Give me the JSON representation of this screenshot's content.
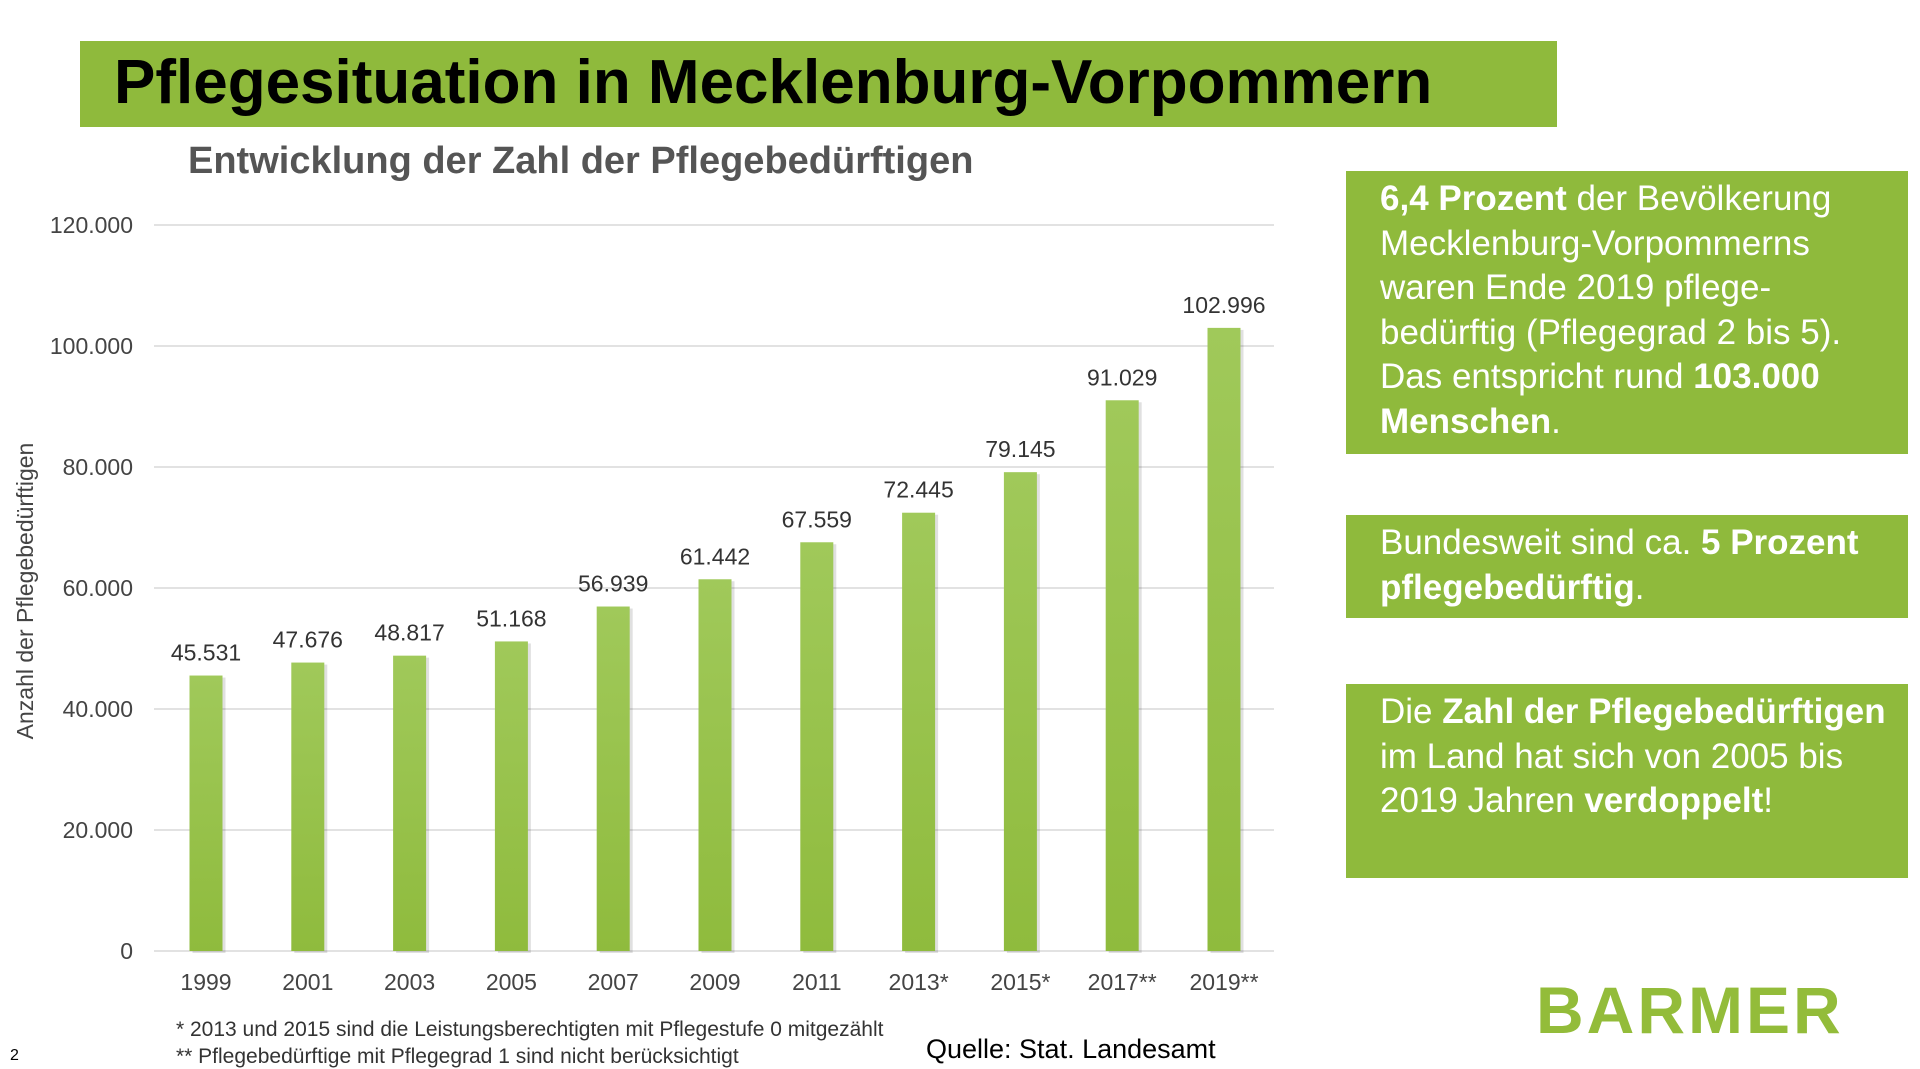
{
  "title": "Pflegesituation in Mecklenburg-Vorpommern",
  "chart_data": {
    "type": "bar",
    "title": "Entwicklung der Zahl der Pflegebedürftigen",
    "xlabel": "",
    "ylabel": "Anzahl der Pflegebedürftigen",
    "ylim": [
      0,
      120000
    ],
    "yticks": [
      0,
      20000,
      40000,
      60000,
      80000,
      100000,
      120000
    ],
    "ytick_labels": [
      "0",
      "20.000",
      "40.000",
      "60.000",
      "80.000",
      "100.000",
      "120.000"
    ],
    "grid": true,
    "categories": [
      "1999",
      "2001",
      "2003",
      "2005",
      "2007",
      "2009",
      "2011",
      "2013*",
      "2015*",
      "2017**",
      "2019**"
    ],
    "values": [
      45531,
      47676,
      48817,
      51168,
      56939,
      61442,
      67559,
      72445,
      79145,
      91029,
      102996
    ],
    "value_labels": [
      "45.531",
      "47.676",
      "48.817",
      "51.168",
      "56.939",
      "61.442",
      "67.559",
      "72.445",
      "79.145",
      "91.029",
      "102.996"
    ],
    "bar_color": "#9bc550"
  },
  "boxes": [
    {
      "parts": [
        [
          "b",
          "6,4 Prozent"
        ],
        [
          "t",
          " der Bevölkerung Mecklenburg-Vorpommerns waren Ende 2019 pflege-bedürftig (Pflegegrad 2 bis 5). Das entspricht rund "
        ],
        [
          "b",
          "103.000 Menschen"
        ],
        [
          "t",
          "."
        ]
      ]
    },
    {
      "parts": [
        [
          "t",
          "Bundesweit sind ca. "
        ],
        [
          "b",
          "5 Prozent pflegebedürftig"
        ],
        [
          "t",
          "."
        ]
      ]
    },
    {
      "parts": [
        [
          "t",
          "Die "
        ],
        [
          "b",
          "Zahl der Pflegebedürftigen"
        ],
        [
          "t",
          " im Land hat sich von 2005 bis 2019 Jahren "
        ],
        [
          "b",
          "verdoppelt"
        ],
        [
          "t",
          "!"
        ]
      ]
    }
  ],
  "footnotes": [
    "* 2013 und 2015 sind die Leistungsberechtigten mit Pflegestufe 0 mitgezählt",
    "** Pflegebedürftige mit Pflegegrad 1 sind nicht berücksichtigt"
  ],
  "source": "Quelle: Stat. Landesamt",
  "logo": "BARMER",
  "page_number": "2"
}
